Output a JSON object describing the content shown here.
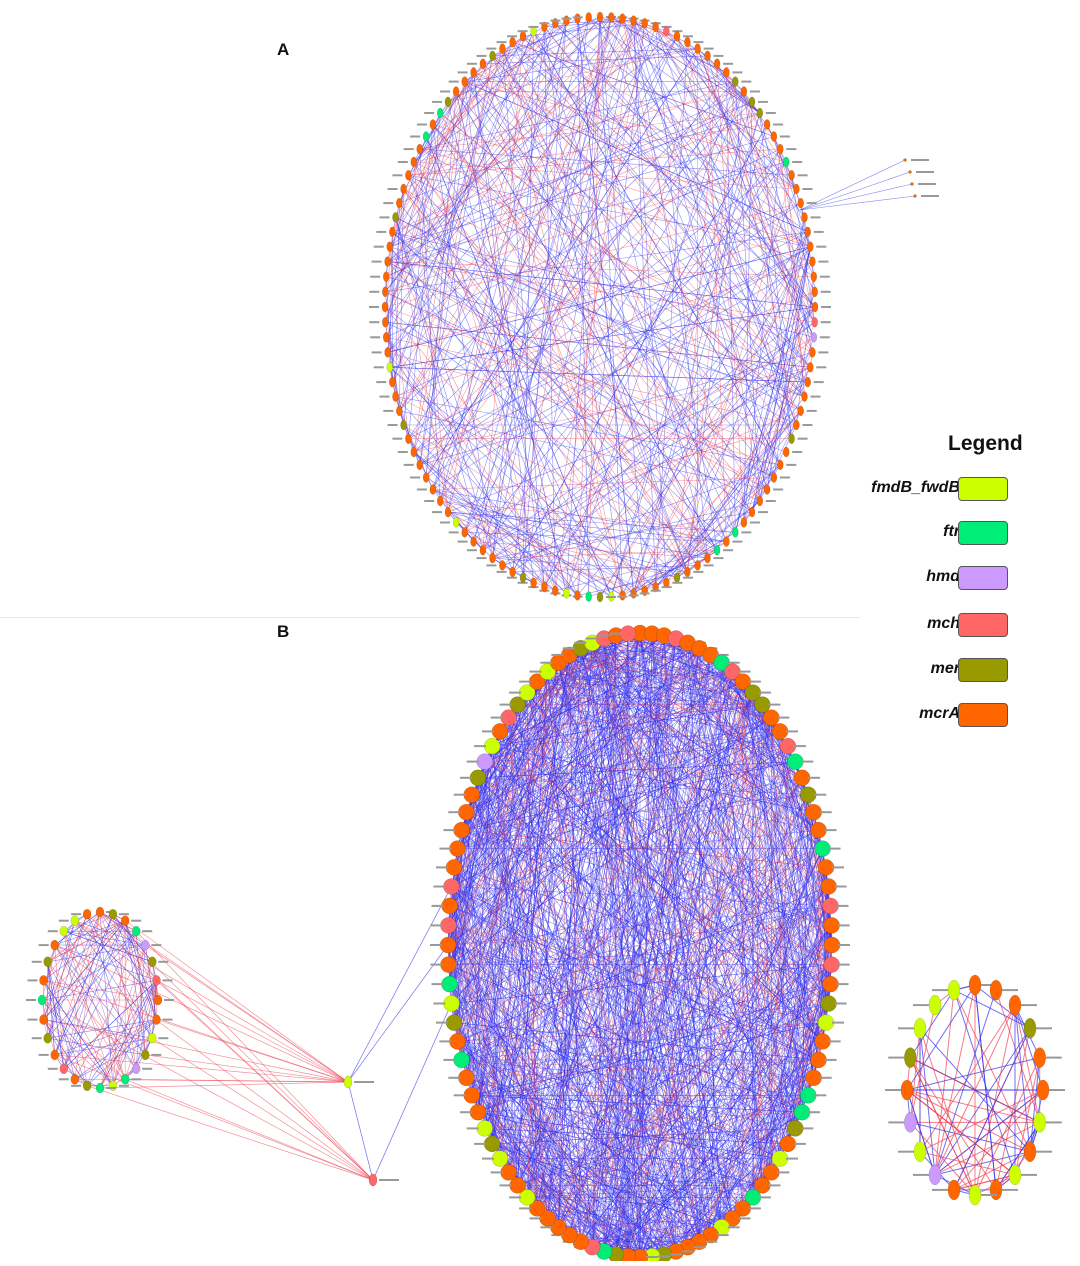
{
  "panels": [
    {
      "label": "A"
    },
    {
      "label": "B"
    }
  ],
  "legend": {
    "title": "Legend",
    "items": [
      {
        "name": "fmdB_fwdB",
        "color": "#ccff00"
      },
      {
        "name": "ftr",
        "color": "#00ee77"
      },
      {
        "name": "hmd",
        "color": "#cc99ff"
      },
      {
        "name": "mch",
        "color": "#ff6666"
      },
      {
        "name": "mer",
        "color": "#999900"
      },
      {
        "name": "mcrA",
        "color": "#ff6600"
      }
    ]
  },
  "edge_colors": {
    "positive": "#3333ee",
    "negative": "#ee4455"
  }
}
